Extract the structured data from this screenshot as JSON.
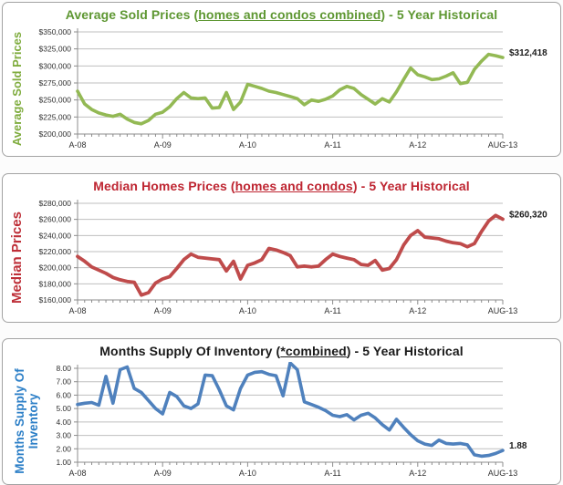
{
  "chart_data": [
    {
      "type": "line",
      "title": "Average Sold Prices (homes and condos combined) - 5 Year Historical",
      "title_prefix": "Average Sold Prices (",
      "title_underline": "homes and condos combined",
      "title_suffix": ") - 5 Year Historical",
      "title_color": "#5e9732",
      "ylabel": "Average Sold Prices",
      "ylabel_color": "#7fac3e",
      "xlabel": "",
      "line_color": "#93b954",
      "line_width": 3.6,
      "grid": "horizontal",
      "legend_position": "none",
      "ylim": [
        200000,
        350000
      ],
      "y_ticks": [
        {
          "value": 200000,
          "label": "$200,000"
        },
        {
          "value": 225000,
          "label": "$225,000"
        },
        {
          "value": 250000,
          "label": "$250,000"
        },
        {
          "value": 275000,
          "label": "$275,000"
        },
        {
          "value": 300000,
          "label": "$300,000"
        },
        {
          "value": 325000,
          "label": "$325,000"
        },
        {
          "value": 350000,
          "label": "$350,000"
        }
      ],
      "x_ticks": [
        {
          "month": 0,
          "label": "A-08"
        },
        {
          "month": 12,
          "label": "A-09"
        },
        {
          "month": 24,
          "label": "A-10"
        },
        {
          "month": 36,
          "label": "A-11"
        },
        {
          "month": 48,
          "label": "A-12"
        },
        {
          "month": 60,
          "label": "AUG-13"
        }
      ],
      "end_label": "$312,418",
      "values": [
        263000,
        244000,
        236000,
        231000,
        228000,
        226000,
        229000,
        222000,
        217000,
        215000,
        220000,
        229000,
        232000,
        240000,
        252000,
        261000,
        253000,
        252000,
        253000,
        238000,
        239000,
        261000,
        236000,
        247000,
        273000,
        270000,
        267000,
        263000,
        261000,
        258000,
        255000,
        252000,
        243000,
        250000,
        248000,
        251000,
        256000,
        265000,
        270000,
        267000,
        258000,
        251000,
        244000,
        252000,
        247000,
        262000,
        280000,
        297000,
        287000,
        284000,
        280000,
        281000,
        285000,
        290000,
        274000,
        276000,
        295000,
        307000,
        317000,
        315000,
        312418
      ]
    },
    {
      "type": "line",
      "title": "Median Homes Prices (homes and condos) - 5 Year Historical",
      "title_prefix": "Median Homes Prices (",
      "title_underline": "homes and condos",
      "title_suffix": ") - 5 Year Historical",
      "title_color": "#be2531",
      "ylabel": "Median Prices",
      "ylabel_color": "#be2f38",
      "xlabel": "",
      "line_color": "#bf4b4b",
      "line_width": 3.8,
      "grid": "horizontal",
      "legend_position": "none",
      "ylim": [
        160000,
        280000
      ],
      "y_ticks": [
        {
          "value": 160000,
          "label": "$160,000"
        },
        {
          "value": 180000,
          "label": "$180,000"
        },
        {
          "value": 200000,
          "label": "$200,000"
        },
        {
          "value": 220000,
          "label": "$220,000"
        },
        {
          "value": 240000,
          "label": "$240,000"
        },
        {
          "value": 260000,
          "label": "$260,000"
        },
        {
          "value": 280000,
          "label": "$280,000"
        }
      ],
      "x_ticks": [
        {
          "month": 0,
          "label": "A-08"
        },
        {
          "month": 12,
          "label": "A-09"
        },
        {
          "month": 24,
          "label": "A-10"
        },
        {
          "month": 36,
          "label": "A-11"
        },
        {
          "month": 48,
          "label": "A-12"
        },
        {
          "month": 60,
          "label": "AUG-13"
        }
      ],
      "end_label": "$260,320",
      "values": [
        214000,
        208000,
        201000,
        197000,
        193000,
        188000,
        185000,
        183000,
        182000,
        166000,
        169000,
        181000,
        186000,
        189000,
        199000,
        210000,
        217000,
        213000,
        212000,
        211000,
        210000,
        196000,
        208000,
        186000,
        203000,
        206000,
        210000,
        224000,
        222000,
        219000,
        215000,
        201000,
        202000,
        201000,
        202000,
        210000,
        217000,
        214000,
        212000,
        210000,
        204000,
        203000,
        209000,
        197000,
        199000,
        210000,
        228000,
        240000,
        246000,
        238000,
        237000,
        236000,
        233000,
        231000,
        230000,
        226000,
        230000,
        245000,
        258000,
        265000,
        260320
      ]
    },
    {
      "type": "line",
      "title": "Months Supply Of Inventory (*combined) - 5 Year Historical",
      "title_prefix": "Months Supply Of Inventory (",
      "title_underline": "*combined",
      "title_suffix": ") - 5 Year Historical",
      "title_color": "#1a1a1a",
      "ylabel": "Months Supply Of\nInventory",
      "ylabel_color": "#2c7fc7",
      "xlabel": "",
      "line_color": "#4f81bd",
      "line_width": 3.6,
      "grid": "horizontal",
      "legend_position": "none",
      "ylim": [
        1,
        8
      ],
      "y_ticks": [
        {
          "value": 1,
          "label": "1.00"
        },
        {
          "value": 2,
          "label": "2.00"
        },
        {
          "value": 3,
          "label": "3.00"
        },
        {
          "value": 4,
          "label": "4.00"
        },
        {
          "value": 5,
          "label": "5.00"
        },
        {
          "value": 6,
          "label": "6.00"
        },
        {
          "value": 7,
          "label": "7.00"
        },
        {
          "value": 8,
          "label": "8.00"
        }
      ],
      "x_ticks": [
        {
          "month": 0,
          "label": "A-08"
        },
        {
          "month": 12,
          "label": "A-09"
        },
        {
          "month": 24,
          "label": "A-10"
        },
        {
          "month": 36,
          "label": "A-11"
        },
        {
          "month": 48,
          "label": "A-12"
        },
        {
          "month": 60,
          "label": "AUG-13"
        }
      ],
      "end_label": "1.88",
      "values": [
        5.3,
        5.4,
        5.45,
        5.25,
        7.4,
        5.4,
        7.9,
        8.1,
        6.5,
        6.2,
        5.6,
        5.0,
        4.6,
        6.2,
        5.9,
        5.2,
        5.0,
        5.35,
        7.5,
        7.45,
        6.4,
        5.2,
        4.9,
        6.5,
        7.5,
        7.7,
        7.75,
        7.55,
        7.45,
        5.95,
        8.4,
        7.9,
        5.5,
        5.3,
        5.1,
        4.85,
        4.5,
        4.4,
        4.55,
        4.15,
        4.5,
        4.65,
        4.3,
        3.8,
        3.4,
        4.2,
        3.6,
        3.05,
        2.6,
        2.35,
        2.25,
        2.65,
        2.4,
        2.35,
        2.4,
        2.3,
        1.55,
        1.45,
        1.5,
        1.65,
        1.88
      ]
    }
  ],
  "style": {
    "gridline_color": "#bfbfbf",
    "axis_color": "#8c8c8c",
    "tick_label_color": "#303030",
    "annotation_color": "#1a1a1a"
  }
}
